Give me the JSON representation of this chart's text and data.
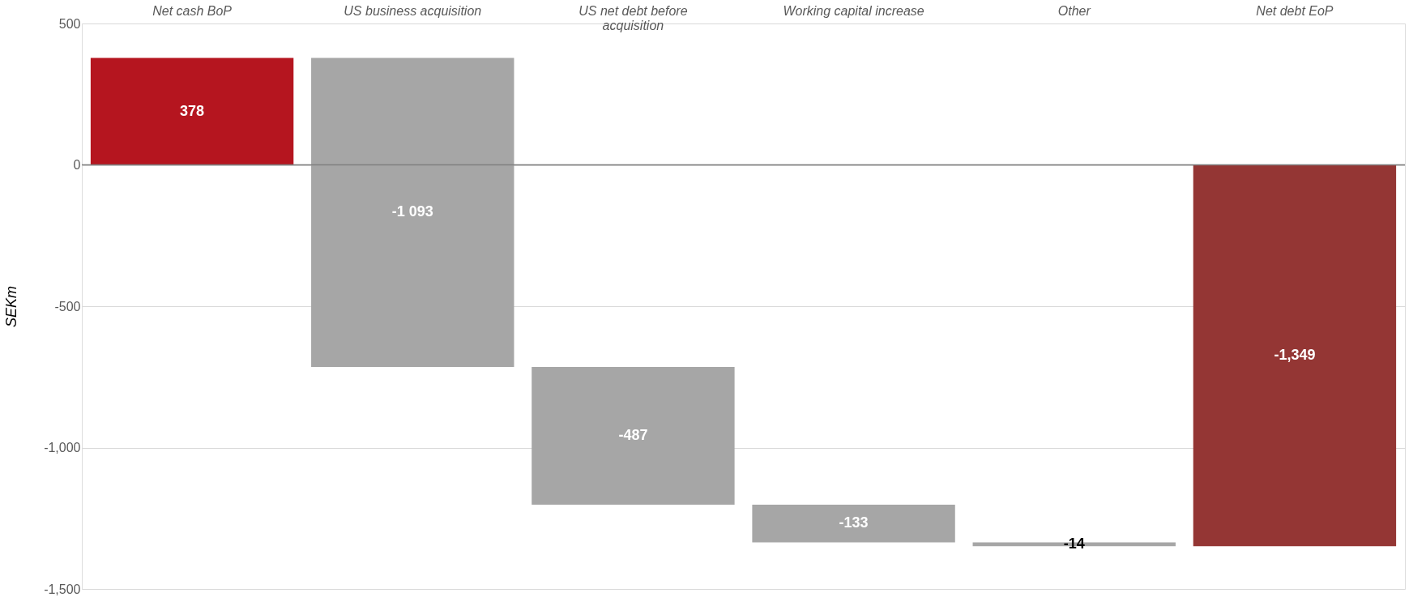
{
  "chart_data": {
    "type": "bar",
    "ylabel": "SEKm",
    "categories": [
      "Net cash BoP",
      "US business acquisition",
      "US net debt before acquisition",
      "Working capital increase",
      "Other",
      "Net debt EoP"
    ],
    "values": [
      378,
      -1093,
      -487,
      -133,
      -14,
      -1349
    ],
    "base": [
      0,
      378,
      -715,
      -1202,
      -1335,
      0
    ],
    "colors": [
      "#b5151f",
      "#a6a6a6",
      "#a6a6a6",
      "#a6a6a6",
      "#a6a6a6",
      "#943634"
    ],
    "value_labels": [
      "378",
      "-1 093",
      "-487",
      "-133",
      "-14",
      "-1,349"
    ],
    "ylim": [
      -1500,
      500
    ],
    "yticks": [
      {
        "value": 500,
        "label": "500"
      },
      {
        "value": 0,
        "label": "0"
      },
      {
        "value": -500,
        "label": "-500"
      },
      {
        "value": -1000,
        "label": "-1,000"
      },
      {
        "value": -1500,
        "label": "-1,500"
      }
    ],
    "grid": "y"
  }
}
